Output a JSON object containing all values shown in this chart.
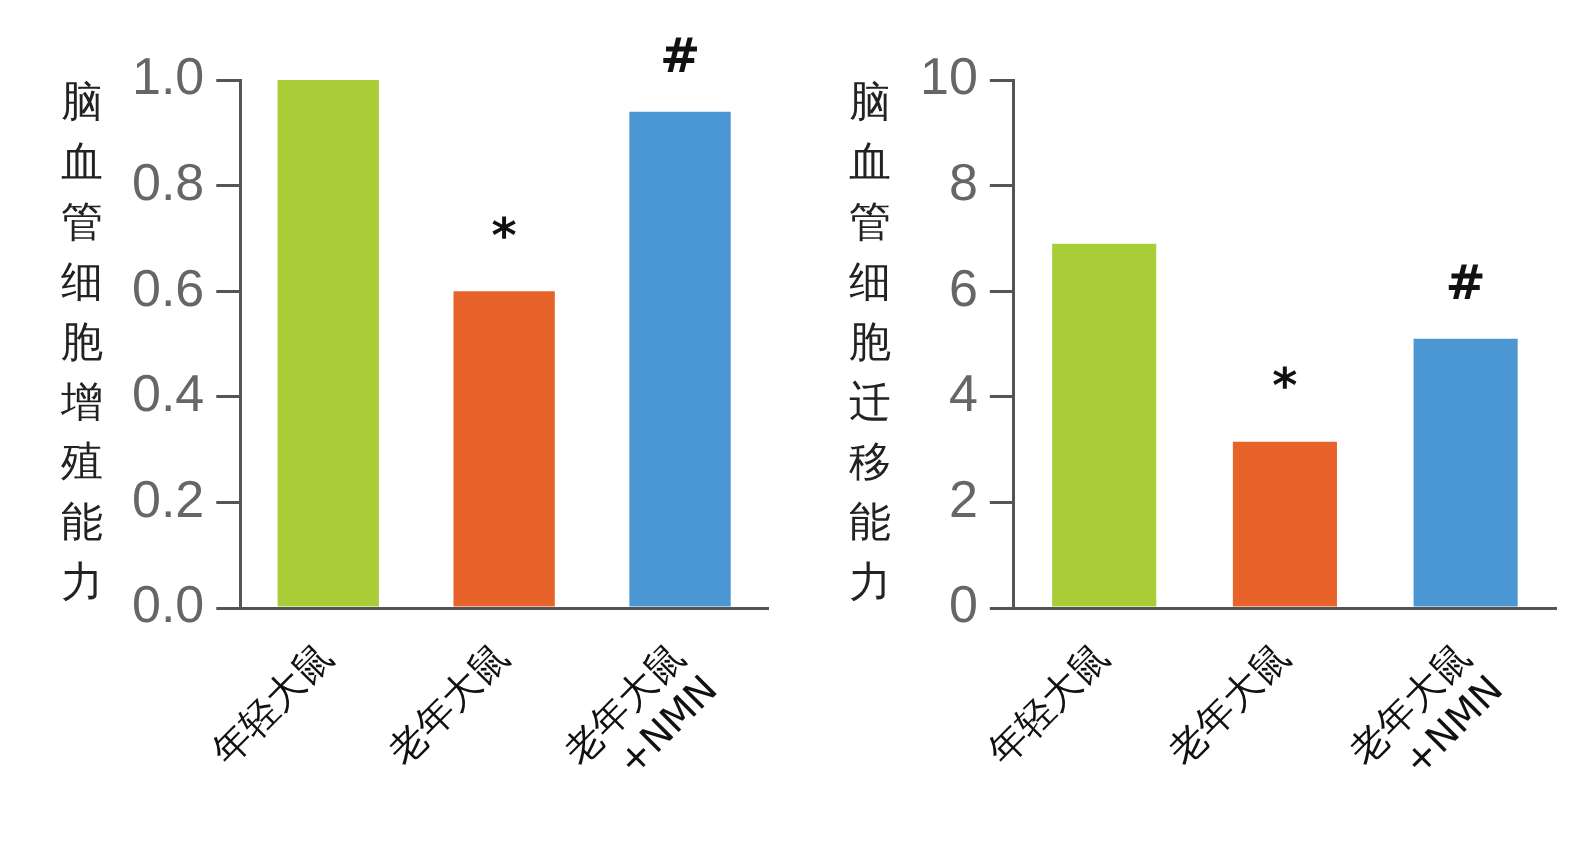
{
  "chart_data": [
    {
      "type": "bar",
      "ylabel": "脑血管细胞增殖能力",
      "categories": [
        "年轻大鼠",
        "老年大鼠",
        "老年大鼠\n+NMN"
      ],
      "values": [
        1.0,
        0.6,
        0.94
      ],
      "colors": [
        "#a8cd37",
        "#e8632a",
        "#4a97d4"
      ],
      "ylim": [
        0,
        1
      ],
      "yticks": [
        {
          "value": 0,
          "label": "0.0"
        },
        {
          "value": 0.2,
          "label": "0.2"
        },
        {
          "value": 0.4,
          "label": "0.4"
        },
        {
          "value": 0.6,
          "label": "0.6"
        },
        {
          "value": 0.8,
          "label": "0.8"
        },
        {
          "value": 1,
          "label": "1.0"
        }
      ],
      "grid": false,
      "legend": false,
      "annotations": [
        "*",
        "#"
      ]
    },
    {
      "type": "bar",
      "ylabel": "脑血管细胞迁移能力",
      "categories": [
        "年轻大鼠",
        "老年大鼠",
        "老年大鼠\n+NMN"
      ],
      "values": [
        6.9,
        3.15,
        5.1
      ],
      "colors": [
        "#a8cd37",
        "#e8632a",
        "#4a97d4"
      ],
      "ylim": [
        0,
        10
      ],
      "yticks": [
        0,
        2,
        4,
        6,
        8,
        10
      ],
      "grid": false,
      "legend": false,
      "annotations": [
        "*",
        "#"
      ]
    }
  ]
}
